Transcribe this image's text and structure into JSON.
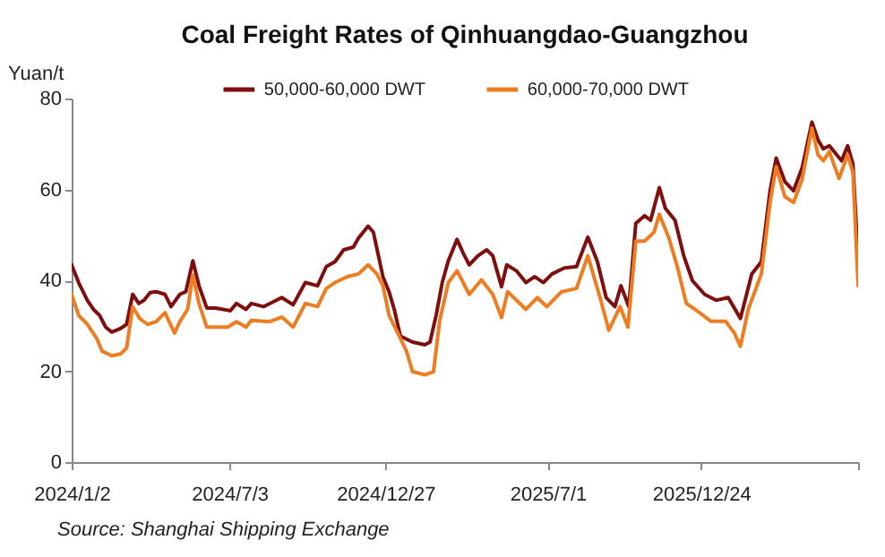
{
  "chart_data": {
    "type": "line",
    "title": "Coal Freight Rates of Qinhuangdao-Guangzhou",
    "ylabel": "Yuan/t",
    "ylim": [
      0,
      80
    ],
    "yticks": [
      0,
      20,
      40,
      60,
      80
    ],
    "xlim": [
      "2024-01-02",
      "2026-06-22"
    ],
    "xticks": [
      {
        "value": "2024-01-02",
        "label": "2024/1/2"
      },
      {
        "value": "2024-07-01",
        "label": "2024/7/3"
      },
      {
        "value": "2024-12-27",
        "label": "2024/12/27"
      },
      {
        "value": "2025-07-01",
        "label": "2025/7/1"
      },
      {
        "value": "2025-12-24",
        "label": "2025/12/24"
      },
      {
        "value": "2026-06-22",
        "label": null
      }
    ],
    "grid": false,
    "legend": "top",
    "marker": "none",
    "line_style": "solid",
    "annotations": [
      "Source: Shanghai Shipping Exchange"
    ],
    "series": [
      {
        "name": "50,000-60,000 DWT",
        "color": "#7f0f0f",
        "x": [
          "2024-01-02",
          "2024-01-10",
          "2024-01-20",
          "2024-01-27",
          "2024-02-03",
          "2024-02-10",
          "2024-02-17",
          "2024-02-27",
          "2024-03-05",
          "2024-03-12",
          "2024-03-19",
          "2024-03-25",
          "2024-04-01",
          "2024-04-08",
          "2024-04-18",
          "2024-04-25",
          "2024-05-05",
          "2024-05-12",
          "2024-05-20",
          "2024-05-27",
          "2024-06-05",
          "2024-06-15",
          "2024-07-02",
          "2024-07-09",
          "2024-07-20",
          "2024-07-26",
          "2024-08-09",
          "2024-08-30",
          "2024-09-12",
          "2024-09-26",
          "2024-10-10",
          "2024-10-20",
          "2024-10-30",
          "2024-11-09",
          "2024-11-20",
          "2024-11-26",
          "2024-12-07",
          "2024-12-13",
          "2024-12-24",
          "2024-12-31",
          "2025-01-06",
          "2025-01-13",
          "2025-01-27",
          "2025-02-10",
          "2025-02-16",
          "2025-02-23",
          "2025-03-02",
          "2025-03-09",
          "2025-03-19",
          "2025-03-26",
          "2025-04-02",
          "2025-04-12",
          "2025-04-22",
          "2025-04-29",
          "2025-05-09",
          "2025-05-15",
          "2025-05-26",
          "2025-06-06",
          "2025-06-16",
          "2025-06-26",
          "2025-07-06",
          "2025-07-20",
          "2025-08-03",
          "2025-08-16",
          "2025-08-27",
          "2025-09-06",
          "2025-09-16",
          "2025-09-23",
          "2025-10-02",
          "2025-10-10",
          "2025-10-20",
          "2025-10-27",
          "2025-11-06",
          "2025-11-13",
          "2025-11-24",
          "2025-12-04",
          "2025-12-14",
          "2025-12-28",
          "2026-01-10",
          "2026-01-24",
          "2026-02-07",
          "2026-02-20",
          "2026-03-03",
          "2026-03-13",
          "2026-03-20",
          "2026-03-30",
          "2026-04-09",
          "2026-04-19",
          "2026-04-30",
          "2026-05-07",
          "2026-05-13",
          "2026-05-20",
          "2026-06-03",
          "2026-06-10",
          "2026-06-16",
          "2026-06-22"
        ],
        "values": [
          43.4,
          39.5,
          35.6,
          33.6,
          32.3,
          29.7,
          28.6,
          29.4,
          30.3,
          36.9,
          34.9,
          35.6,
          37.3,
          37.5,
          36.9,
          34.2,
          36.9,
          37.5,
          44.3,
          38.8,
          33.9,
          33.9,
          33.3,
          34.9,
          33.6,
          34.9,
          34.2,
          36.2,
          34.6,
          39.5,
          38.8,
          43.0,
          44.1,
          46.7,
          47.3,
          49.3,
          51.9,
          50.6,
          40.8,
          37.5,
          33.6,
          27.7,
          26.4,
          25.8,
          26.4,
          32.3,
          39.5,
          44.3,
          49.0,
          46.0,
          43.4,
          45.4,
          46.7,
          45.4,
          38.6,
          43.4,
          42.1,
          39.5,
          40.8,
          39.5,
          41.4,
          42.7,
          43.0,
          49.5,
          44.1,
          36.2,
          34.2,
          38.8,
          34.2,
          52.5,
          54.2,
          53.2,
          60.4,
          55.8,
          53.2,
          45.4,
          39.9,
          36.9,
          35.6,
          36.2,
          31.6,
          41.4,
          44.1,
          59.7,
          66.9,
          61.7,
          59.7,
          64.9,
          74.8,
          70.9,
          68.9,
          69.6,
          66.3,
          69.6,
          65.6,
          44.7
        ]
      },
      {
        "name": "60,000-70,000 DWT",
        "color": "#ee7d22",
        "x": [
          "2024-01-02",
          "2024-01-10",
          "2024-01-20",
          "2024-01-31",
          "2024-02-06",
          "2024-02-17",
          "2024-02-27",
          "2024-03-05",
          "2024-03-12",
          "2024-03-20",
          "2024-03-29",
          "2024-04-08",
          "2024-04-18",
          "2024-04-29",
          "2024-05-05",
          "2024-05-14",
          "2024-05-20",
          "2024-05-27",
          "2024-06-05",
          "2024-06-29",
          "2024-07-09",
          "2024-07-20",
          "2024-07-26",
          "2024-08-16",
          "2024-08-30",
          "2024-09-12",
          "2024-09-26",
          "2024-10-10",
          "2024-10-20",
          "2024-10-30",
          "2024-11-13",
          "2024-11-26",
          "2024-12-07",
          "2024-12-17",
          "2024-12-24",
          "2024-12-31",
          "2025-01-10",
          "2025-01-20",
          "2025-01-27",
          "2025-02-10",
          "2025-02-20",
          "2025-02-27",
          "2025-03-09",
          "2025-03-19",
          "2025-04-02",
          "2025-04-16",
          "2025-04-29",
          "2025-05-09",
          "2025-05-16",
          "2025-06-06",
          "2025-06-19",
          "2025-06-30",
          "2025-07-17",
          "2025-08-03",
          "2025-08-16",
          "2025-08-30",
          "2025-09-09",
          "2025-09-22",
          "2025-10-01",
          "2025-10-10",
          "2025-10-20",
          "2025-10-31",
          "2025-11-06",
          "2025-11-17",
          "2025-11-27",
          "2025-12-07",
          "2025-12-17",
          "2026-01-04",
          "2026-01-21",
          "2026-01-31",
          "2026-02-07",
          "2026-02-16",
          "2026-03-03",
          "2026-03-13",
          "2026-03-20",
          "2026-03-30",
          "2026-04-09",
          "2026-04-19",
          "2026-04-30",
          "2026-05-07",
          "2026-05-13",
          "2026-05-20",
          "2026-05-31",
          "2026-06-10",
          "2026-06-16",
          "2026-06-22"
        ],
        "values": [
          36.9,
          32.3,
          30.3,
          27.1,
          24.4,
          23.4,
          23.8,
          25.1,
          34.2,
          31.6,
          30.3,
          30.9,
          32.9,
          28.4,
          30.9,
          33.6,
          41.2,
          34.9,
          29.7,
          29.7,
          30.9,
          29.7,
          31.2,
          30.9,
          31.9,
          29.7,
          34.9,
          34.2,
          38.2,
          39.5,
          40.8,
          41.4,
          43.4,
          41.4,
          38.8,
          32.3,
          28.4,
          24.4,
          19.9,
          19.2,
          19.9,
          31.0,
          39.5,
          42.1,
          36.9,
          40.1,
          36.9,
          31.8,
          37.5,
          33.6,
          36.2,
          34.2,
          37.5,
          38.2,
          45.4,
          36.2,
          29.0,
          34.2,
          29.7,
          48.6,
          48.6,
          50.6,
          54.5,
          49.3,
          42.7,
          34.9,
          33.6,
          31.0,
          31.0,
          28.4,
          25.5,
          33.6,
          41.4,
          57.1,
          65.0,
          58.4,
          57.1,
          62.4,
          73.5,
          67.6,
          66.3,
          68.3,
          62.4,
          67.6,
          63.7,
          38.8
        ]
      }
    ]
  }
}
